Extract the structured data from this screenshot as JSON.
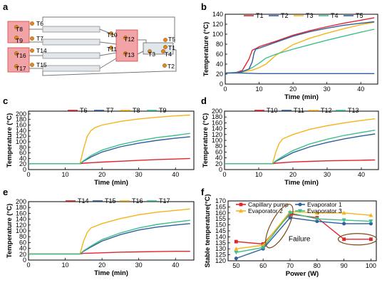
{
  "panels": {
    "a": {
      "letter": "a",
      "sensors": [
        "T8",
        "T9",
        "T6",
        "T7",
        "T16",
        "T17",
        "T14",
        "T15",
        "T10",
        "T11",
        "T12",
        "T13",
        "T5",
        "T1",
        "T3",
        "T4",
        "T2"
      ]
    }
  },
  "colors": {
    "red": "#e0262c",
    "blue": "#2f5f9f",
    "yellow": "#f5b417",
    "green": "#3dbf8a",
    "block": "#f2a3a6",
    "sensor": "#e08a1e"
  },
  "chart_data": [
    {
      "id": "b",
      "letter": "b",
      "type": "line",
      "xlabel": "Time (min)",
      "ylabel": "Temperature (°C)",
      "xlim": [
        0,
        45
      ],
      "ylim": [
        0,
        140
      ],
      "xticks": [
        0,
        10,
        20,
        30,
        40
      ],
      "yticks": [
        0,
        20,
        40,
        60,
        80,
        100,
        120,
        140
      ],
      "legend_position": "top",
      "series": [
        {
          "name": "T1",
          "color": "#e0262c",
          "points": [
            [
              0,
              22
            ],
            [
              3,
              23
            ],
            [
              5,
              27
            ],
            [
              7,
              50
            ],
            [
              8,
              68
            ],
            [
              9,
              71
            ],
            [
              10,
              75
            ],
            [
              15,
              86
            ],
            [
              20,
              98
            ],
            [
              25,
              107
            ],
            [
              30,
              115
            ],
            [
              35,
              122
            ],
            [
              40,
              128
            ],
            [
              44,
              133
            ]
          ]
        },
        {
          "name": "T2",
          "color": "#2f5f9f",
          "points": [
            [
              0,
              22
            ],
            [
              5,
              22
            ],
            [
              10,
              21
            ],
            [
              15,
              21
            ],
            [
              20,
              21
            ],
            [
              25,
              21
            ],
            [
              30,
              21
            ],
            [
              35,
              21
            ],
            [
              40,
              21
            ],
            [
              44,
              21
            ]
          ]
        },
        {
          "name": "T3",
          "color": "#f5b417",
          "points": [
            [
              0,
              22
            ],
            [
              4,
              23
            ],
            [
              8,
              28
            ],
            [
              10,
              33
            ],
            [
              12,
              40
            ],
            [
              15,
              58
            ],
            [
              20,
              79
            ],
            [
              25,
              92
            ],
            [
              30,
              102
            ],
            [
              35,
              111
            ],
            [
              40,
              119
            ],
            [
              44,
              124
            ]
          ]
        },
        {
          "name": "T4",
          "color": "#3dbf8a",
          "points": [
            [
              0,
              22
            ],
            [
              5,
              24
            ],
            [
              8,
              33
            ],
            [
              10,
              42
            ],
            [
              12,
              52
            ],
            [
              15,
              60
            ],
            [
              20,
              70
            ],
            [
              25,
              79
            ],
            [
              30,
              88
            ],
            [
              35,
              96
            ],
            [
              40,
              104
            ],
            [
              44,
              110
            ]
          ]
        },
        {
          "name": "T5",
          "color": "#2f5f9f",
          "points": [
            [
              0,
              22
            ],
            [
              4,
              23
            ],
            [
              7,
              30
            ],
            [
              8,
              45
            ],
            [
              8.5,
              62
            ],
            [
              9,
              70
            ],
            [
              10,
              72
            ],
            [
              15,
              84
            ],
            [
              20,
              96
            ],
            [
              25,
              105
            ],
            [
              30,
              112
            ],
            [
              35,
              118
            ],
            [
              40,
              122
            ],
            [
              44,
              125
            ]
          ]
        }
      ]
    },
    {
      "id": "c",
      "letter": "c",
      "type": "line",
      "xlabel": "Time (min)",
      "ylabel": "Temperature (°C)",
      "xlim": [
        0,
        45
      ],
      "ylim": [
        0,
        210
      ],
      "xticks": [
        0,
        10,
        20,
        30,
        40
      ],
      "yticks": [
        0,
        20,
        40,
        60,
        80,
        100,
        120,
        140,
        160,
        180,
        200
      ],
      "legend_position": "top",
      "series": [
        {
          "name": "T6",
          "color": "#e0262c",
          "points": [
            [
              0,
              21
            ],
            [
              14,
              21
            ],
            [
              15,
              23
            ],
            [
              20,
              27
            ],
            [
              25,
              30
            ],
            [
              30,
              33
            ],
            [
              35,
              36
            ],
            [
              40,
              38
            ],
            [
              44,
              40
            ]
          ]
        },
        {
          "name": "T7",
          "color": "#2f5f9f",
          "points": [
            [
              0,
              21
            ],
            [
              14,
              21
            ],
            [
              15,
              30
            ],
            [
              17,
              45
            ],
            [
              20,
              63
            ],
            [
              25,
              82
            ],
            [
              30,
              95
            ],
            [
              35,
              105
            ],
            [
              40,
              113
            ],
            [
              44,
              118
            ]
          ]
        },
        {
          "name": "T8",
          "color": "#f5b417",
          "points": [
            [
              0,
              21
            ],
            [
              14,
              21
            ],
            [
              15,
              75
            ],
            [
              16,
              120
            ],
            [
              17,
              140
            ],
            [
              18,
              150
            ],
            [
              20,
              160
            ],
            [
              25,
              173
            ],
            [
              30,
              182
            ],
            [
              35,
              188
            ],
            [
              40,
              193
            ],
            [
              44,
              196
            ]
          ]
        },
        {
          "name": "T9",
          "color": "#3dbf8a",
          "points": [
            [
              0,
              21
            ],
            [
              14,
              21
            ],
            [
              15,
              32
            ],
            [
              17,
              50
            ],
            [
              20,
              70
            ],
            [
              25,
              90
            ],
            [
              30,
              104
            ],
            [
              35,
              115
            ],
            [
              40,
              123
            ],
            [
              44,
              130
            ]
          ]
        }
      ]
    },
    {
      "id": "d",
      "letter": "d",
      "type": "line",
      "xlabel": "Time (min)",
      "ylabel": "Temperature (°C)",
      "xlim": [
        0,
        45
      ],
      "ylim": [
        0,
        200
      ],
      "xticks": [
        0,
        10,
        20,
        30,
        40
      ],
      "yticks": [
        0,
        20,
        40,
        60,
        80,
        100,
        120,
        140,
        160,
        180,
        200
      ],
      "legend_position": "top",
      "series": [
        {
          "name": "T10",
          "color": "#e0262c",
          "points": [
            [
              0,
              20
            ],
            [
              14,
              20
            ],
            [
              15,
              22
            ],
            [
              20,
              26
            ],
            [
              25,
              28
            ],
            [
              30,
              30
            ],
            [
              35,
              31
            ],
            [
              40,
              32
            ],
            [
              44,
              33
            ]
          ]
        },
        {
          "name": "T11",
          "color": "#2f5f9f",
          "points": [
            [
              0,
              20
            ],
            [
              14,
              20
            ],
            [
              15,
              28
            ],
            [
              17,
              40
            ],
            [
              20,
              58
            ],
            [
              25,
              78
            ],
            [
              30,
              93
            ],
            [
              35,
              105
            ],
            [
              40,
              115
            ],
            [
              44,
              122
            ]
          ]
        },
        {
          "name": "T12",
          "color": "#f5b417",
          "points": [
            [
              0,
              20
            ],
            [
              14,
              20
            ],
            [
              15,
              60
            ],
            [
              16,
              90
            ],
            [
              17,
              105
            ],
            [
              20,
              120
            ],
            [
              25,
              138
            ],
            [
              30,
              150
            ],
            [
              35,
              160
            ],
            [
              40,
              168
            ],
            [
              44,
              174
            ]
          ]
        },
        {
          "name": "T13",
          "color": "#3dbf8a",
          "points": [
            [
              0,
              20
            ],
            [
              14,
              20
            ],
            [
              15,
              30
            ],
            [
              17,
              45
            ],
            [
              20,
              65
            ],
            [
              25,
              88
            ],
            [
              30,
              104
            ],
            [
              35,
              117
            ],
            [
              40,
              127
            ],
            [
              44,
              135
            ]
          ]
        }
      ]
    },
    {
      "id": "e",
      "letter": "e",
      "type": "line",
      "xlabel": "Time (min)",
      "ylabel": "Temperature (°C)",
      "xlim": [
        0,
        45
      ],
      "ylim": [
        0,
        200
      ],
      "xticks": [
        0,
        10,
        20,
        30,
        40
      ],
      "yticks": [
        0,
        20,
        40,
        60,
        80,
        100,
        120,
        140,
        160,
        180,
        200
      ],
      "legend_position": "top",
      "series": [
        {
          "name": "T14",
          "color": "#e0262c",
          "points": [
            [
              0,
              21
            ],
            [
              14,
              21
            ],
            [
              15,
              23
            ],
            [
              20,
              25
            ],
            [
              25,
              27
            ],
            [
              30,
              28
            ],
            [
              35,
              29
            ],
            [
              40,
              30
            ],
            [
              44,
              30
            ]
          ]
        },
        {
          "name": "T15",
          "color": "#2f5f9f",
          "points": [
            [
              0,
              21
            ],
            [
              14,
              21
            ],
            [
              15,
              30
            ],
            [
              17,
              45
            ],
            [
              20,
              65
            ],
            [
              25,
              87
            ],
            [
              30,
              103
            ],
            [
              35,
              113
            ],
            [
              40,
              120
            ],
            [
              44,
              125
            ]
          ]
        },
        {
          "name": "T16",
          "color": "#f5b417",
          "points": [
            [
              0,
              21
            ],
            [
              14,
              21
            ],
            [
              15,
              65
            ],
            [
              16,
              95
            ],
            [
              17,
              110
            ],
            [
              20,
              125
            ],
            [
              25,
              142
            ],
            [
              30,
              155
            ],
            [
              35,
              164
            ],
            [
              40,
              170
            ],
            [
              44,
              175
            ]
          ]
        },
        {
          "name": "T17",
          "color": "#3dbf8a",
          "points": [
            [
              0,
              21
            ],
            [
              14,
              21
            ],
            [
              15,
              32
            ],
            [
              17,
              48
            ],
            [
              20,
              70
            ],
            [
              25,
              93
            ],
            [
              30,
              110
            ],
            [
              35,
              122
            ],
            [
              40,
              130
            ],
            [
              44,
              136
            ]
          ]
        }
      ]
    },
    {
      "id": "f",
      "letter": "f",
      "type": "line",
      "xlabel": "Power (W)",
      "ylabel": "Stable temperature(°C)",
      "xlim": [
        47,
        102
      ],
      "ylim": [
        120,
        170
      ],
      "xticks": [
        50,
        60,
        70,
        80,
        90,
        100
      ],
      "yticks": [
        120,
        125,
        130,
        135,
        140,
        145,
        150,
        155,
        160,
        165,
        170
      ],
      "legend_position": "top",
      "annotation": "Failure",
      "series": [
        {
          "name": "Capillary pump",
          "color": "#e0262c",
          "marker": "square",
          "points": [
            [
              50,
              136
            ],
            [
              60,
              134
            ],
            [
              70,
              159
            ],
            [
              80,
              156
            ],
            [
              90,
              138
            ],
            [
              100,
              138
            ]
          ]
        },
        {
          "name": "Evaporator 1",
          "color": "#2f5f9f",
          "marker": "circle",
          "points": [
            [
              50,
              122
            ],
            [
              60,
              130
            ],
            [
              70,
              156
            ],
            [
              80,
              153
            ],
            [
              90,
              151
            ],
            [
              100,
              151
            ]
          ]
        },
        {
          "name": "Evaporator 2",
          "color": "#f5b417",
          "marker": "triangle",
          "points": [
            [
              50,
              130
            ],
            [
              60,
              133
            ],
            [
              70,
              161
            ],
            [
              80,
              160
            ],
            [
              90,
              160
            ],
            [
              100,
              158
            ]
          ]
        },
        {
          "name": "Evaporator 3",
          "color": "#3dbf8a",
          "marker": "triangle-down",
          "points": [
            [
              50,
              127
            ],
            [
              60,
              131
            ],
            [
              70,
              160
            ],
            [
              80,
              155
            ],
            [
              90,
              154
            ],
            [
              100,
              153
            ]
          ]
        }
      ]
    }
  ]
}
